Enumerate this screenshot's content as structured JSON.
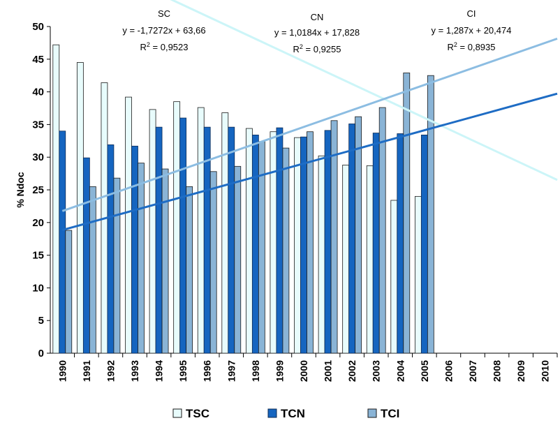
{
  "chart_data": {
    "type": "bar",
    "ylabel": "% Ndoc",
    "xlabel": "",
    "ylim": [
      0,
      50
    ],
    "yticks": [
      "0",
      "5",
      "10",
      "15",
      "20",
      "25",
      "30",
      "35",
      "40",
      "45",
      "50"
    ],
    "categories": [
      "1990",
      "1991",
      "1992",
      "1993",
      "1994",
      "1995",
      "1996",
      "1997",
      "1998",
      "1999",
      "2000",
      "2001",
      "2002",
      "2003",
      "2004",
      "2005",
      "2006",
      "2007",
      "2008",
      "2009",
      "2010"
    ],
    "series": [
      {
        "name": "TSC",
        "color": "#e8fcfc",
        "stroke": "#1a1a1a",
        "values": [
          47.2,
          44.5,
          41.4,
          39.2,
          37.3,
          38.5,
          37.6,
          36.8,
          34.4,
          33.9,
          33.0,
          30.2,
          28.8,
          28.7,
          23.4,
          24.0,
          null,
          null,
          null,
          null,
          null
        ]
      },
      {
        "name": "TCN",
        "color": "#1565c0",
        "stroke": "#0b2a55",
        "values": [
          34.0,
          29.9,
          31.9,
          31.7,
          34.6,
          36.0,
          34.6,
          34.6,
          33.4,
          34.5,
          33.1,
          34.1,
          35.1,
          33.7,
          33.6,
          33.4,
          null,
          null,
          null,
          null,
          null
        ]
      },
      {
        "name": "TCI",
        "color": "#8ab4d6",
        "stroke": "#1a1a1a",
        "values": [
          18.8,
          25.5,
          26.8,
          29.1,
          28.2,
          25.5,
          27.8,
          28.6,
          32.4,
          31.4,
          33.9,
          35.6,
          36.2,
          37.6,
          42.9,
          42.5,
          null,
          null,
          null,
          null,
          null
        ]
      }
    ],
    "trendlines": [
      {
        "series": "TSC",
        "slope": -1.7272,
        "intercept": 63.66,
        "color": "#ccf5f8"
      },
      {
        "series": "TCN",
        "slope": 1.0184,
        "intercept": 17.828,
        "color": "#1e6cc4"
      },
      {
        "series": "TCI",
        "slope": 1.287,
        "intercept": 20.474,
        "color": "#8cbde2"
      }
    ],
    "annotations": [
      {
        "name": "SC",
        "equation": "y = -1,7272x + 63,66",
        "r2_prefix": "R",
        "r2_sup": "2",
        "r2_value": " = 0,9523"
      },
      {
        "name": "CN",
        "equation": "y = 1,0184x + 17,828",
        "r2_prefix": "R",
        "r2_sup": "2",
        "r2_value": " = 0,9255"
      },
      {
        "name": "CI",
        "equation": "y = 1,287x + 20,474",
        "r2_prefix": "R",
        "r2_sup": "2",
        "r2_value": " = 0,8935"
      }
    ],
    "legend": {
      "position": "bottom"
    }
  }
}
